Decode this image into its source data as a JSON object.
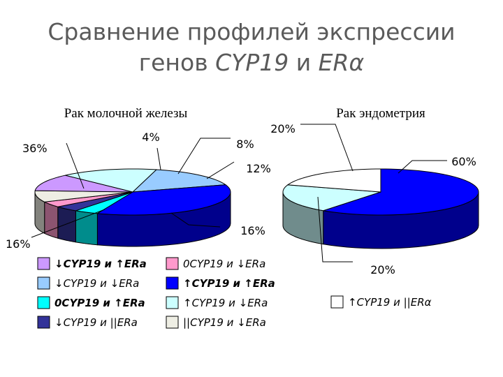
{
  "title": {
    "line1": "Сравнение профилей экспрессии",
    "line2_prefix": "генов ",
    "line2_gene": "CYP19",
    "line2_and": " и ",
    "line2_er": "ERα"
  },
  "chart_data": [
    {
      "type": "pie",
      "title": "Рак молочной железы",
      "slices": [
        {
          "label": "↓CYP19 и ↓ERα",
          "value": 16,
          "label_text": "16%",
          "color": "#99ccff"
        },
        {
          "label": "↑CYP19 и ↑ERα",
          "value": 36,
          "label_text": "36%",
          "color": "#0000ff"
        },
        {
          "label": "0CYP19 и ↑ERα",
          "value": 4,
          "label_text": "",
          "color": "#00ffff"
        },
        {
          "label": "↓CYP19 и ||ERα",
          "value": 4,
          "label_text": "4%",
          "color": "#333399"
        },
        {
          "label": "0CYP19 и ↓ERα",
          "value": 4,
          "label_text": "",
          "color": "#ff99cc"
        },
        {
          "label": "||CYP19 и ↓ERα",
          "value": 8,
          "label_text": "8%",
          "color": "#eeeee4"
        },
        {
          "label": "↓CYP19 и ↑ERα",
          "value": 12,
          "label_text": "12%",
          "color": "#cc99ff"
        },
        {
          "label": "↑CYP19 и ↓ERα",
          "value": 16,
          "label_text": "16%",
          "color": "#ccffff"
        }
      ]
    },
    {
      "type": "pie",
      "title": "Рак эндометрия",
      "slices": [
        {
          "label": "↑CYP19 и ↑ERα",
          "value": 60,
          "label_text": "60%",
          "color": "#0000ff"
        },
        {
          "label": "↑CYP19 и ↓ERα",
          "value": 20,
          "label_text": "20%",
          "color": "#ccffff"
        },
        {
          "label": "↑CYP19 и ||ERα",
          "value": 20,
          "label_text": "20%",
          "color": "#ffffff"
        }
      ]
    }
  ],
  "legend": {
    "left_col1": [
      {
        "text": "↓CYP19 и ↑ERa",
        "color": "#cc99ff",
        "bold": true
      },
      {
        "text": "↓CYP19 и ↓ERa",
        "color": "#99ccff",
        "bold": false
      },
      {
        "text": "0CYP19 и ↑ERa",
        "color": "#00ffff",
        "bold": true
      },
      {
        "text": "↓CYP19 и ||ERa",
        "color": "#333399",
        "bold": false
      }
    ],
    "left_col2": [
      {
        "text": "0CYP19 и ↓ERa",
        "color": "#ff99cc",
        "bold": false
      },
      {
        "text": "↑CYP19 и ↑ERa",
        "color": "#0000ff",
        "bold": true
      },
      {
        "text": "↑CYP19 и ↓ERa",
        "color": "#ccffff",
        "bold": false
      },
      {
        "text": "||CYP19 и ↓ERa",
        "color": "#eeeee4",
        "bold": false
      }
    ],
    "right": [
      {
        "text": "↑CYP19 и ||ERα",
        "color": "#ffffff",
        "bold": false
      }
    ]
  }
}
